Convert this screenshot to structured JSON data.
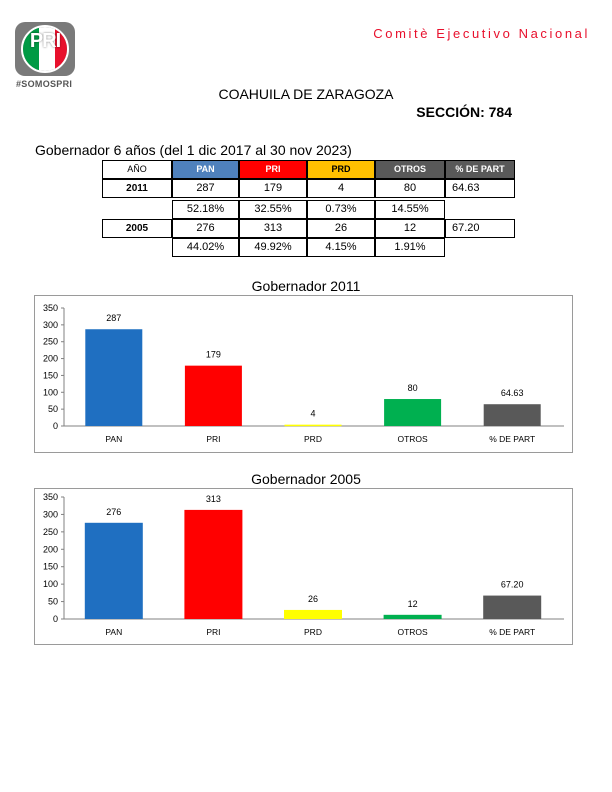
{
  "header": {
    "logo_text": "PRI",
    "hashtag": "#SOMOSPRI",
    "committee": "Comitè Ejecutivo Nacional",
    "state": "COAHUILA DE ZARAGOZA",
    "section": "SECCIÓN: 784",
    "period": "Gobernador 6 años (del 1 dic 2017 al 30 nov 2023)"
  },
  "colors": {
    "pan": "#1f6fc1",
    "pri": "#ff0000",
    "prd": "#ffff00",
    "otros": "#00b050",
    "part": "#595959",
    "pan_header": "#4f81bd",
    "pri_header": "#ff0000",
    "prd_header": "#ffc000",
    "otros_header": "#595959",
    "part_header": "#595959",
    "committee": "#e8102c"
  },
  "table": {
    "headers": [
      "AÑO",
      "PAN",
      "PRI",
      "PRD",
      "OTROS",
      "% DE PART"
    ],
    "rows": [
      {
        "year": "2011",
        "votes": [
          "287",
          "179",
          "4",
          "80"
        ],
        "participation": "64.63",
        "percents": [
          "52.18%",
          "32.55%",
          "0.73%",
          "14.55%"
        ]
      },
      {
        "year": "2005",
        "votes": [
          "276",
          "313",
          "26",
          "12"
        ],
        "participation": "67.20",
        "percents": [
          "44.02%",
          "49.92%",
          "4.15%",
          "1.91%"
        ]
      }
    ]
  },
  "chart_data": [
    {
      "type": "bar",
      "title": "Gobernador  2011",
      "categories": [
        "PAN",
        "PRI",
        "PRD",
        "OTROS",
        "% DE PART"
      ],
      "values": [
        287,
        179,
        4,
        80,
        64.63
      ],
      "labels": [
        "287",
        "179",
        "4",
        "80",
        "64.63"
      ],
      "colors": [
        "#1f6fc1",
        "#ff0000",
        "#ffff00",
        "#00b050",
        "#595959"
      ],
      "yticks": [
        "0",
        "50",
        "100",
        "150",
        "200",
        "250",
        "300",
        "350"
      ],
      "ylim": [
        0,
        350
      ],
      "grid": false,
      "legend": "none"
    },
    {
      "type": "bar",
      "title": "Gobernador  2005",
      "categories": [
        "PAN",
        "PRI",
        "PRD",
        "OTROS",
        "% DE PART"
      ],
      "values": [
        276,
        313,
        26,
        12,
        67.2
      ],
      "labels": [
        "276",
        "313",
        "26",
        "12",
        "67.20"
      ],
      "colors": [
        "#1f6fc1",
        "#ff0000",
        "#ffff00",
        "#00b050",
        "#595959"
      ],
      "yticks": [
        "0",
        "50",
        "100",
        "150",
        "200",
        "250",
        "300",
        "350"
      ],
      "ylim": [
        0,
        350
      ],
      "grid": false,
      "legend": "none"
    }
  ]
}
